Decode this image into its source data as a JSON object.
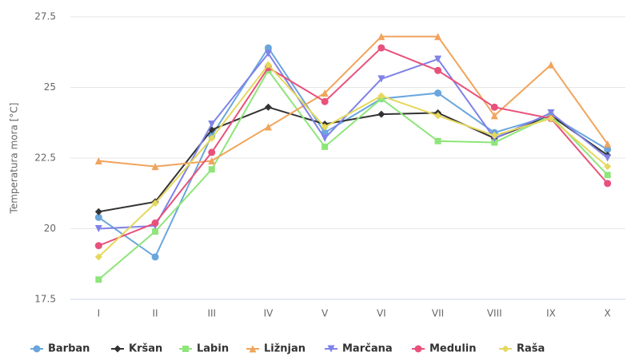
{
  "chart_data": {
    "type": "line",
    "y_label": "Temperatura mora [°C]",
    "categories": [
      "I",
      "II",
      "III",
      "IV",
      "V",
      "VI",
      "VII",
      "VIII",
      "IX",
      "X"
    ],
    "ylim": [
      17.5,
      27.5
    ],
    "yticks": [
      17.5,
      20,
      22.5,
      25,
      27.5
    ],
    "grid": true,
    "legend": "bottom",
    "series": [
      {
        "name": "Barban",
        "color": "#6aa6dd",
        "marker": "circle",
        "values": [
          20.4,
          19.0,
          23.3,
          26.4,
          23.4,
          24.6,
          24.8,
          23.4,
          24.0,
          22.8
        ]
      },
      {
        "name": "Kršan",
        "color": "#333333",
        "marker": "diamond",
        "values": [
          20.6,
          20.95,
          23.5,
          24.3,
          23.7,
          24.05,
          24.1,
          23.2,
          24.0,
          22.6
        ]
      },
      {
        "name": "Labin",
        "color": "#8ee57a",
        "marker": "square",
        "values": [
          18.2,
          19.9,
          22.1,
          25.6,
          22.9,
          24.6,
          23.1,
          23.05,
          24.0,
          21.9
        ]
      },
      {
        "name": "Ližnjan",
        "color": "#f1a45c",
        "marker": "triangle",
        "values": [
          22.4,
          22.2,
          22.4,
          23.6,
          24.8,
          26.8,
          26.8,
          24.0,
          25.8,
          23.0
        ]
      },
      {
        "name": "Marčana",
        "color": "#7f82e8",
        "marker": "triangle-down",
        "values": [
          20.0,
          20.1,
          23.7,
          26.2,
          23.2,
          25.3,
          26.0,
          23.2,
          24.1,
          22.5
        ]
      },
      {
        "name": "Medulin",
        "color": "#e8517b",
        "marker": "circle",
        "values": [
          19.4,
          20.2,
          22.7,
          25.7,
          24.5,
          26.4,
          25.6,
          24.3,
          23.9,
          21.6
        ]
      },
      {
        "name": "Raša",
        "color": "#e5d85d",
        "marker": "diamond",
        "values": [
          19.0,
          20.9,
          23.2,
          25.8,
          23.6,
          24.7,
          24.0,
          23.3,
          23.9,
          22.2
        ]
      }
    ]
  }
}
